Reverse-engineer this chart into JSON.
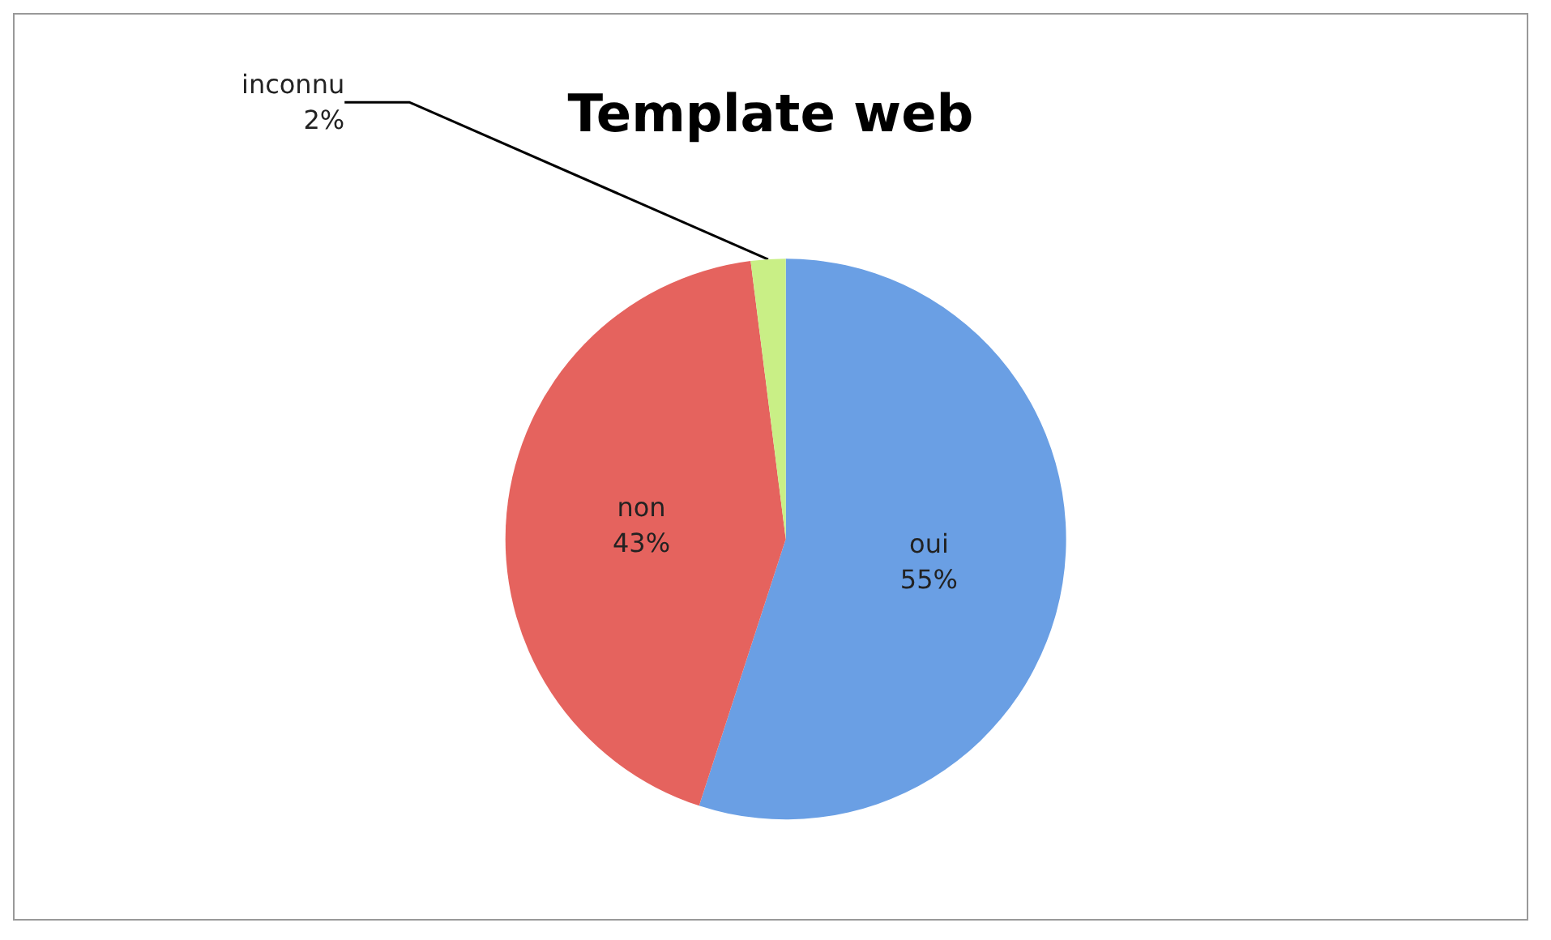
{
  "chart_data": {
    "type": "pie",
    "title": "Template web",
    "categories": [
      "oui",
      "non",
      "inconnu"
    ],
    "values": [
      55,
      43,
      2
    ],
    "colors": [
      "#6a9fe4",
      "#e5635e",
      "#c9ef86"
    ],
    "value_labels": [
      "55%",
      "43%",
      "2%"
    ],
    "legend": false
  }
}
